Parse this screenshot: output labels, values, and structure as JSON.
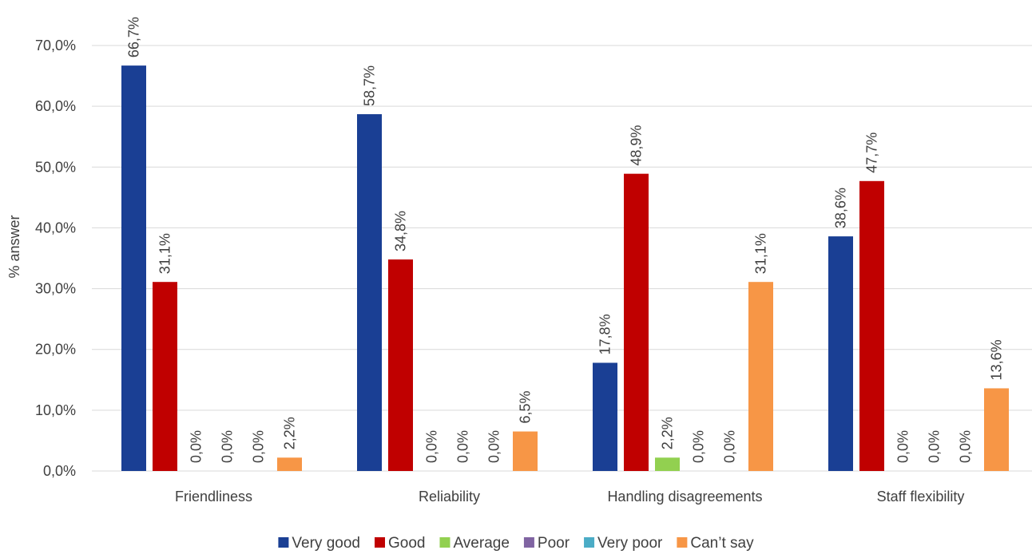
{
  "chart_data": {
    "type": "bar",
    "title": "",
    "xlabel": "",
    "ylabel": "% answer",
    "ylim": [
      0,
      70
    ],
    "yticks": [
      "0,0%",
      "10,0%",
      "20,0%",
      "30,0%",
      "40,0%",
      "50,0%",
      "60,0%",
      "70,0%"
    ],
    "grid": true,
    "legend_position": "bottom",
    "categories": [
      "Friendliness",
      "Reliability",
      "Handling disagreements",
      "Staff flexibility"
    ],
    "series": [
      {
        "name": "Very good",
        "color": "#1a3f94",
        "values": [
          66.7,
          58.7,
          17.8,
          38.6
        ],
        "labels": [
          "66,7%",
          "58,7%",
          "17,8%",
          "38,6%"
        ]
      },
      {
        "name": "Good",
        "color": "#c00000",
        "values": [
          31.1,
          34.8,
          48.9,
          47.7
        ],
        "labels": [
          "31,1%",
          "34,8%",
          "48,9%",
          "47,7%"
        ]
      },
      {
        "name": "Average",
        "color": "#92d050",
        "values": [
          0.0,
          0.0,
          2.2,
          0.0
        ],
        "labels": [
          "0,0%",
          "0,0%",
          "2,2%",
          "0,0%"
        ]
      },
      {
        "name": "Poor",
        "color": "#8064a2",
        "values": [
          0.0,
          0.0,
          0.0,
          0.0
        ],
        "labels": [
          "0,0%",
          "0,0%",
          "0,0%",
          "0,0%"
        ]
      },
      {
        "name": "Very poor",
        "color": "#4bacc6",
        "values": [
          0.0,
          0.0,
          0.0,
          0.0
        ],
        "labels": [
          "0,0%",
          "0,0%",
          "0,0%",
          "0,0%"
        ]
      },
      {
        "name": "Can’t say",
        "color": "#f79646",
        "values": [
          2.2,
          6.5,
          31.1,
          13.6
        ],
        "labels": [
          "2,2%",
          "6,5%",
          "31,1%",
          "13,6%"
        ]
      }
    ]
  }
}
